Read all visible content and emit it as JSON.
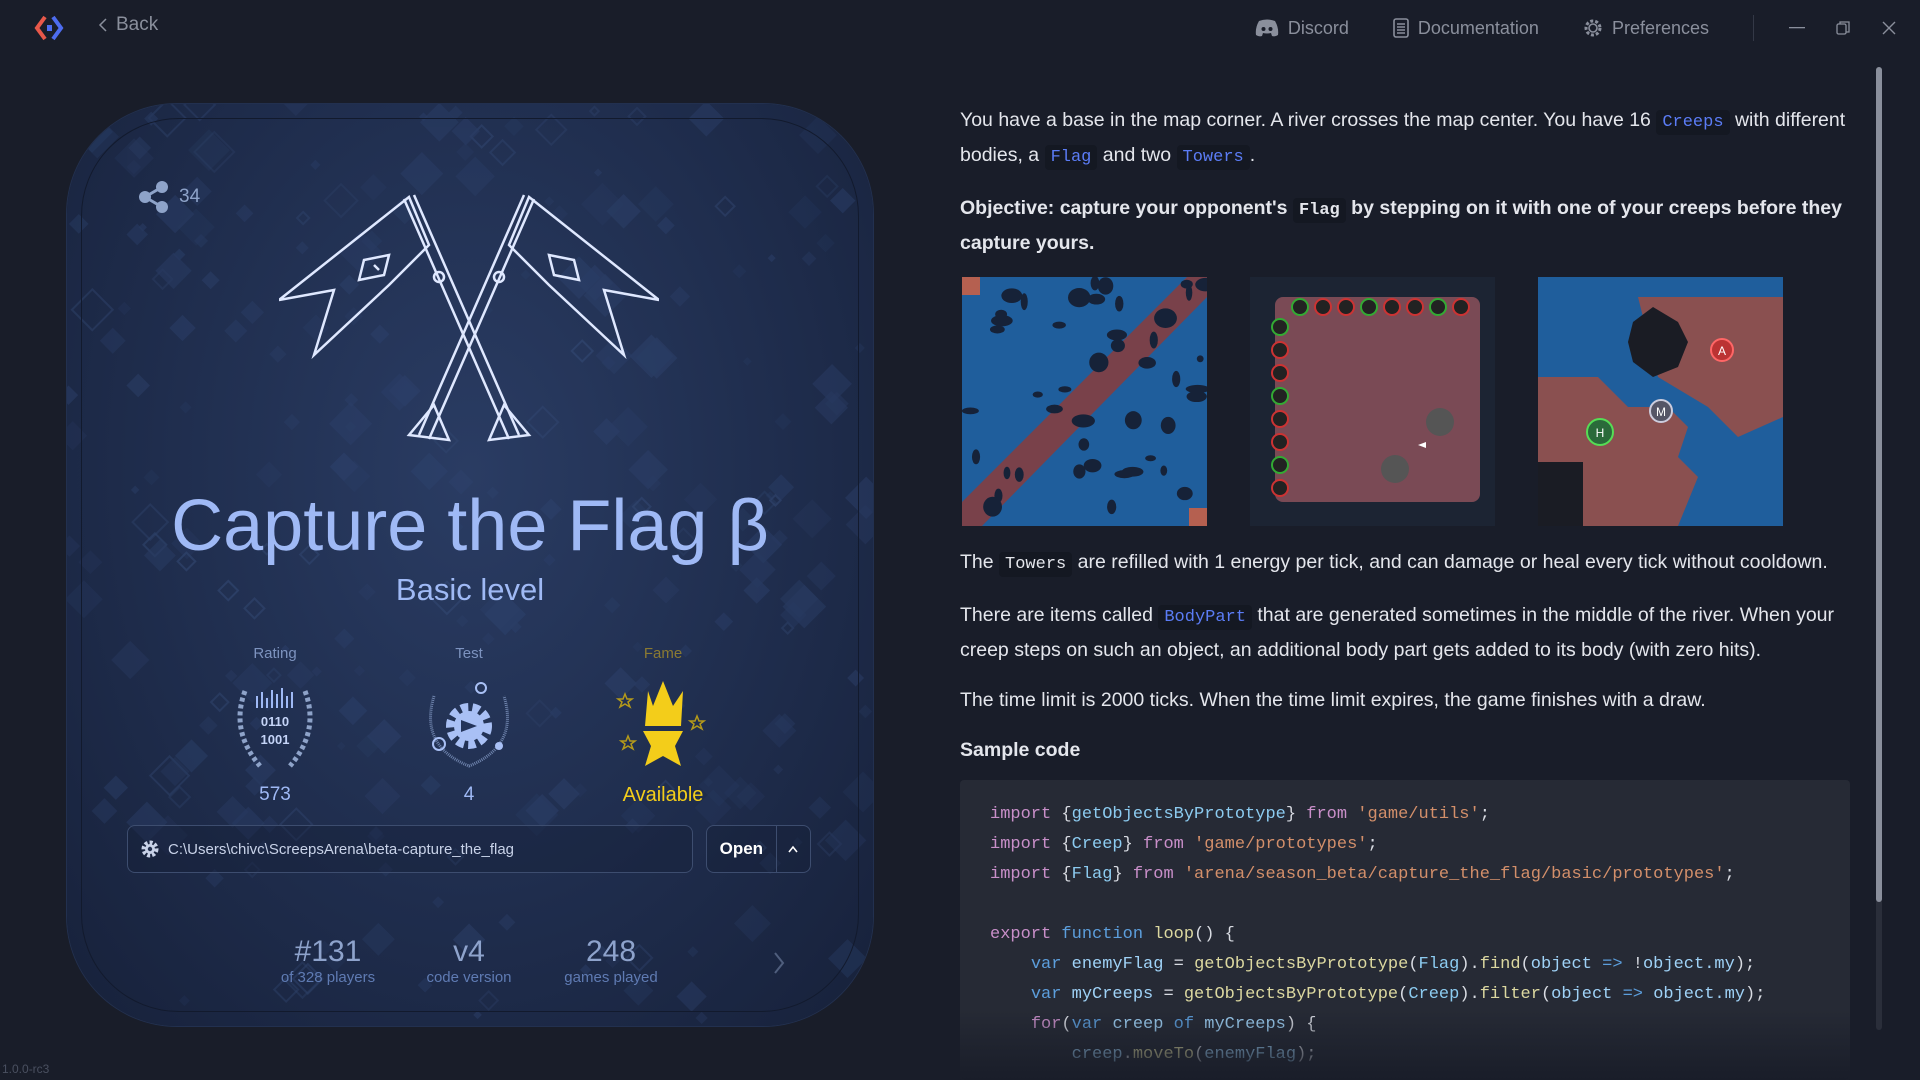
{
  "topbar": {
    "back_label": "Back",
    "nav": [
      {
        "label": "Discord",
        "icon": "discord-icon"
      },
      {
        "label": "Documentation",
        "icon": "document-icon"
      },
      {
        "label": "Preferences",
        "icon": "gear-icon"
      }
    ],
    "window_controls": [
      "minimize",
      "restore",
      "close"
    ]
  },
  "card": {
    "share_count": "34",
    "title": "Capture the Flag β",
    "subtitle": "Basic level",
    "stats": [
      {
        "label": "Rating",
        "value": "573",
        "icon_text": [
          "0110",
          "1001"
        ]
      },
      {
        "label": "Test",
        "value": "4"
      },
      {
        "label": "Fame",
        "value": "Available"
      }
    ],
    "path": "C:\\Users\\chivc\\ScreepsArena\\beta-capture_the_flag",
    "open_label": "Open",
    "bottom_stats": [
      {
        "big": "#131",
        "small": "of 328 players"
      },
      {
        "big": "v4",
        "small": "code version"
      },
      {
        "big": "248",
        "small": "games played"
      }
    ]
  },
  "version": "1.0.0-rc3",
  "colors": {
    "accent": "#5b7cf5",
    "title": "#9fb9f5",
    "fame": "#f3cd1a",
    "background": "#191d29"
  },
  "content": {
    "para1": [
      {
        "t": "You have a base in the map corner. A river crosses the map center. You have 16 "
      },
      {
        "t": "Creeps",
        "code": true,
        "link": true
      },
      {
        "t": " with different bodies, a "
      },
      {
        "t": "Flag",
        "code": true,
        "link": true
      },
      {
        "t": " and two "
      },
      {
        "t": "Towers",
        "code": true,
        "link": true
      },
      {
        "t": "."
      }
    ],
    "para2": [
      {
        "t": "Objective: capture your opponent's "
      },
      {
        "t": "Flag",
        "code": true
      },
      {
        "t": " by stepping on it with one of your creeps before they capture yours."
      }
    ],
    "para3": [
      {
        "t": "The "
      },
      {
        "t": "Towers",
        "code": true
      },
      {
        "t": " are refilled with 1 energy per tick, and can damage or heal every tick without cooldown."
      }
    ],
    "para4": [
      {
        "t": "There are items called "
      },
      {
        "t": "BodyPart",
        "code": true,
        "link": true
      },
      {
        "t": " that are generated sometimes in the middle of the river. When your creep steps on such an object, an additional body part gets added to its body (with zero hits)."
      }
    ],
    "para5": [
      {
        "t": "The time limit is 2000 ticks. When the time limit expires, the game finishes with a draw."
      }
    ],
    "map_labels": [
      "A",
      "M",
      "H"
    ],
    "sample_heading": "Sample code",
    "code": [
      [
        [
          "kw",
          "import"
        ],
        [
          "pl",
          " {"
        ],
        [
          "ty",
          "getObjectsByPrototype"
        ],
        [
          "pl",
          "} "
        ],
        [
          "kw",
          "from"
        ],
        [
          "str",
          " 'game/utils'"
        ],
        [
          "pl",
          ";"
        ]
      ],
      [
        [
          "kw",
          "import"
        ],
        [
          "pl",
          " {"
        ],
        [
          "ty",
          "Creep"
        ],
        [
          "pl",
          "} "
        ],
        [
          "kw",
          "from"
        ],
        [
          "str",
          " 'game/prototypes'"
        ],
        [
          "pl",
          ";"
        ]
      ],
      [
        [
          "kw",
          "import"
        ],
        [
          "pl",
          " {"
        ],
        [
          "ty",
          "Flag"
        ],
        [
          "pl",
          "} "
        ],
        [
          "kw",
          "from"
        ],
        [
          "str",
          " 'arena/season_beta/capture_the_flag/basic/prototypes'"
        ],
        [
          "pl",
          ";"
        ]
      ],
      [],
      [
        [
          "kw",
          "export"
        ],
        [
          "var",
          " function "
        ],
        [
          "fn",
          "loop"
        ],
        [
          "pl",
          "() {"
        ]
      ],
      [
        [
          "pl",
          "    "
        ],
        [
          "var",
          "var "
        ],
        [
          "id",
          "enemyFlag"
        ],
        [
          "pl",
          " = "
        ],
        [
          "fn",
          "getObjectsByPrototype"
        ],
        [
          "pl",
          "("
        ],
        [
          "ty",
          "Flag"
        ],
        [
          "pl",
          ")."
        ],
        [
          "fn",
          "find"
        ],
        [
          "pl",
          "("
        ],
        [
          "id",
          "object"
        ],
        [
          "var",
          " => "
        ],
        [
          "pl",
          "!"
        ],
        [
          "id",
          "object.my"
        ],
        [
          "pl",
          ");"
        ]
      ],
      [
        [
          "pl",
          "    "
        ],
        [
          "var",
          "var "
        ],
        [
          "id",
          "myCreeps"
        ],
        [
          "pl",
          " = "
        ],
        [
          "fn",
          "getObjectsByPrototype"
        ],
        [
          "pl",
          "("
        ],
        [
          "ty",
          "Creep"
        ],
        [
          "pl",
          ")."
        ],
        [
          "fn",
          "filter"
        ],
        [
          "pl",
          "("
        ],
        [
          "id",
          "object"
        ],
        [
          "var",
          " => "
        ],
        [
          "id",
          "object.my"
        ],
        [
          "pl",
          ");"
        ]
      ],
      [
        [
          "pl",
          "    "
        ],
        [
          "kw",
          "for"
        ],
        [
          "pl",
          "("
        ],
        [
          "var",
          "var "
        ],
        [
          "id",
          "creep"
        ],
        [
          "var",
          " of "
        ],
        [
          "id",
          "myCreeps"
        ],
        [
          "pl",
          ") {"
        ]
      ],
      [
        [
          "pl",
          "        "
        ],
        [
          "id",
          "creep"
        ],
        [
          "pl",
          "."
        ],
        [
          "fn",
          "moveTo"
        ],
        [
          "pl",
          "("
        ],
        [
          "id",
          "enemyFlag"
        ],
        [
          "pl",
          ");"
        ]
      ]
    ]
  }
}
